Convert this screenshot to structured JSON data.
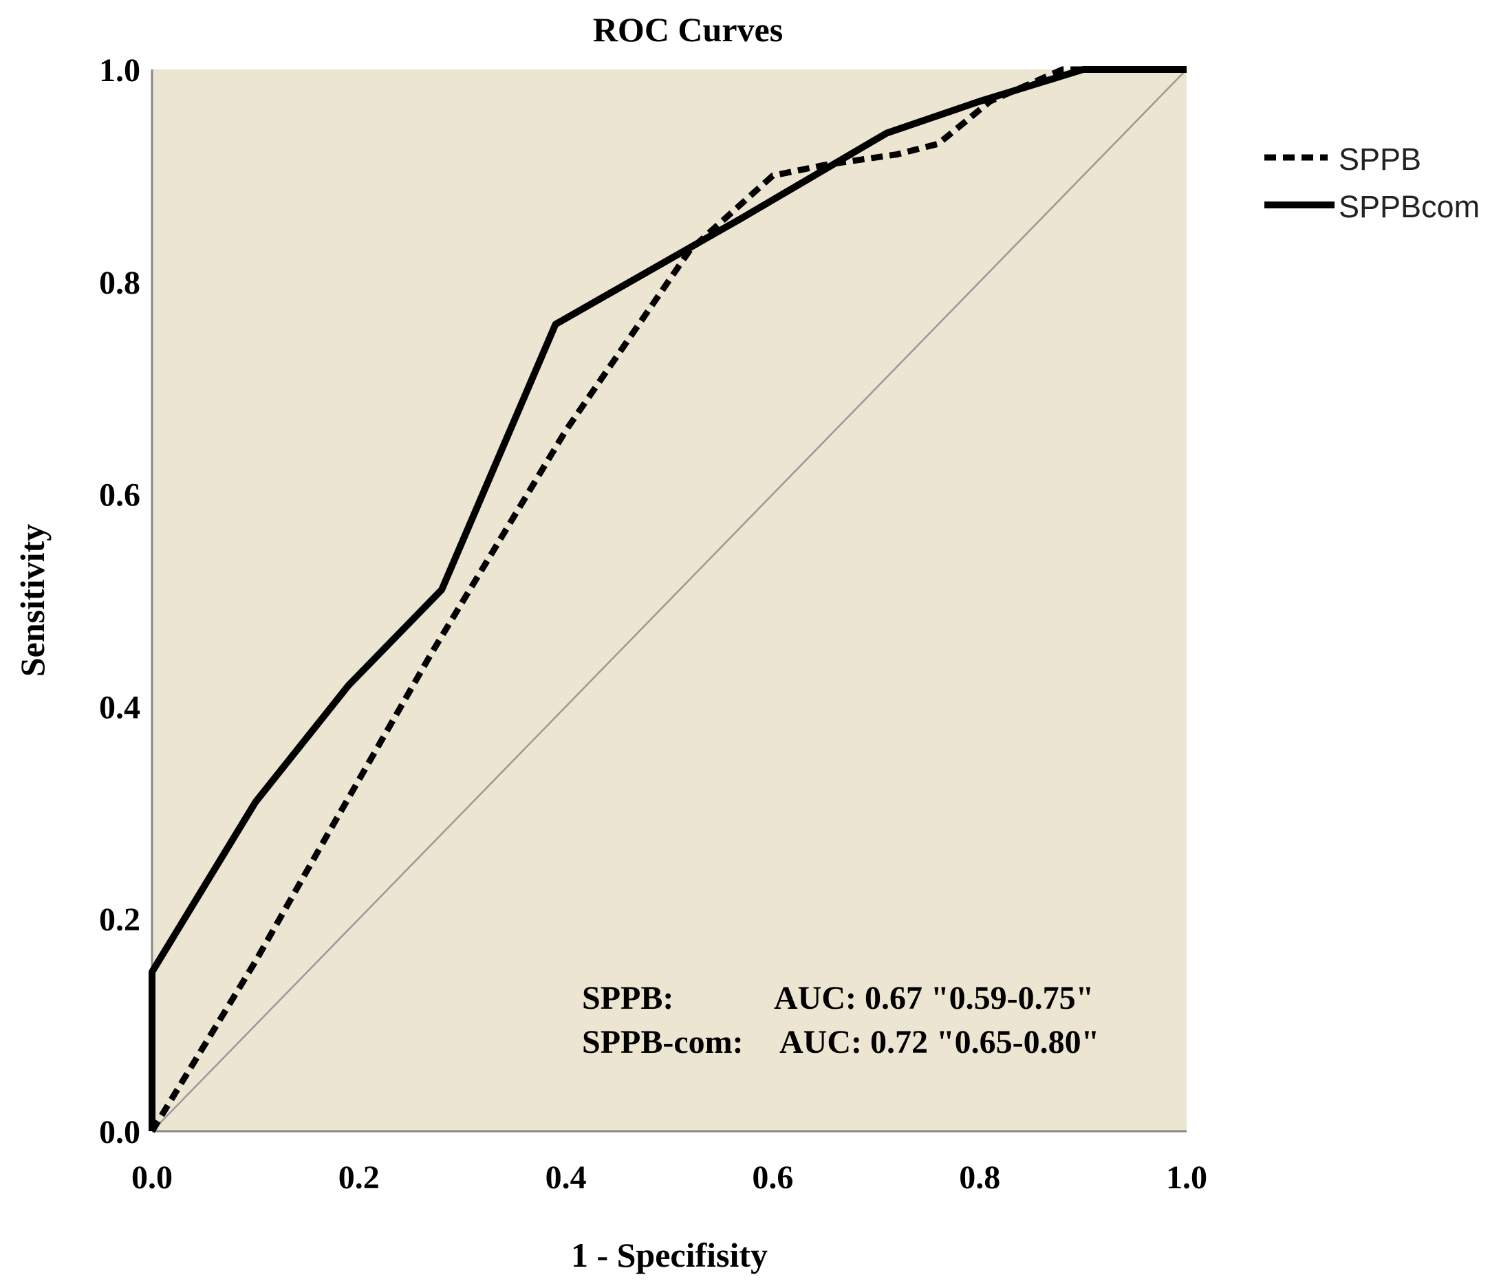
{
  "chart_data": {
    "type": "line",
    "title": "ROC Curves",
    "xlabel": "1 - Specifisity",
    "ylabel": "Sensitivity",
    "xlim": [
      0,
      1
    ],
    "ylim": [
      0,
      1
    ],
    "xticks": [
      "0.0",
      "0.2",
      "0.4",
      "0.6",
      "0.8",
      "1.0"
    ],
    "yticks": [
      "0.0",
      "0.2",
      "0.4",
      "0.6",
      "0.8",
      "1.0"
    ],
    "tick_values": [
      0,
      0.2,
      0.4,
      0.6,
      0.8,
      1.0
    ],
    "grid": false,
    "background_color": "#ece5d2",
    "legend_position": "right",
    "series": [
      {
        "name": "SPPB",
        "style": "dashed",
        "color": "#000000",
        "x": [
          0,
          0.05,
          0.1,
          0.17,
          0.27,
          0.4,
          0.52,
          0.6,
          0.65,
          0.72,
          0.76,
          0.81,
          0.88,
          1.0
        ],
        "y": [
          0,
          0.08,
          0.16,
          0.28,
          0.45,
          0.66,
          0.83,
          0.9,
          0.91,
          0.92,
          0.93,
          0.97,
          1.0,
          1.0
        ]
      },
      {
        "name": "SPPBcom",
        "style": "solid",
        "color": "#000000",
        "x": [
          0,
          0,
          0.1,
          0.19,
          0.28,
          0.39,
          0.57,
          0.71,
          0.8,
          0.9,
          1.0
        ],
        "y": [
          0,
          0.15,
          0.31,
          0.42,
          0.51,
          0.76,
          0.86,
          0.94,
          0.97,
          1.0,
          1.0
        ]
      },
      {
        "name": "Reference Line",
        "style": "thin",
        "color": "#999999",
        "x": [
          0,
          1
        ],
        "y": [
          0,
          1
        ]
      }
    ],
    "legend": [
      {
        "label": "SPPB",
        "style": "dashed"
      },
      {
        "label": "SPPBcom",
        "style": "solid"
      }
    ],
    "annotations": [
      {
        "label": "SPPB:",
        "text": "AUC: 0.67 \"0.59-0.75\""
      },
      {
        "label": "SPPB-com:",
        "text": "AUC: 0.72 \"0.65-0.80\""
      }
    ]
  }
}
